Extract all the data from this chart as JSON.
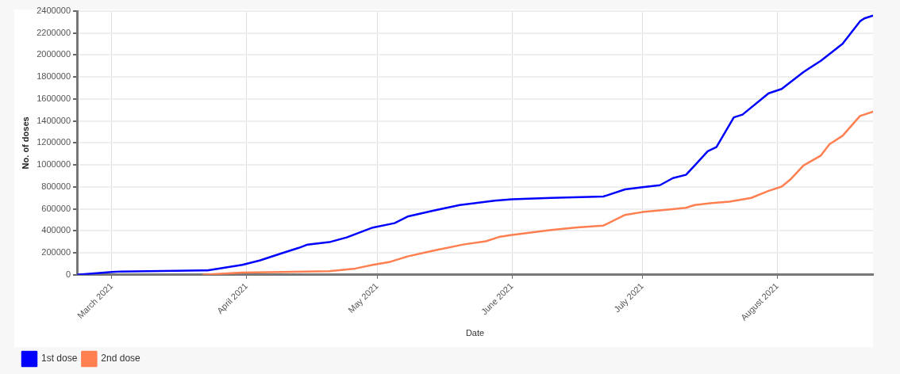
{
  "chart_data": {
    "type": "line",
    "xlabel": "Date",
    "ylabel": "No. of doses",
    "xlim": [
      "2021-02-21",
      "2021-08-23"
    ],
    "xticks": [
      {
        "value": "2021-03-01",
        "label": "March 2021"
      },
      {
        "value": "2021-04-01",
        "label": "April 2021"
      },
      {
        "value": "2021-05-01",
        "label": "May 2021"
      },
      {
        "value": "2021-06-01",
        "label": "June 2021"
      },
      {
        "value": "2021-07-01",
        "label": "July 2021"
      },
      {
        "value": "2021-08-01",
        "label": "August 2021"
      }
    ],
    "ylim": [
      0,
      2400000
    ],
    "yticks": [
      0,
      200000,
      400000,
      600000,
      800000,
      1000000,
      1200000,
      1400000,
      1600000,
      1800000,
      2000000,
      2200000,
      2400000
    ],
    "grid": true,
    "legend": "bottom left",
    "marker": "none",
    "line_style": "solid",
    "series": [
      {
        "name": "1st dose",
        "color": "#0000ff",
        "x": [
          "2021-02-21",
          "2021-03-01",
          "2021-03-03",
          "2021-03-23",
          "2021-03-31",
          "2021-04-04",
          "2021-04-09",
          "2021-04-13",
          "2021-04-15",
          "2021-04-20",
          "2021-04-24",
          "2021-04-30",
          "2021-05-05",
          "2021-05-08",
          "2021-05-14",
          "2021-05-20",
          "2021-05-28",
          "2021-06-01",
          "2021-06-10",
          "2021-06-22",
          "2021-06-27",
          "2021-07-01",
          "2021-07-05",
          "2021-07-08",
          "2021-07-11",
          "2021-07-13",
          "2021-07-16",
          "2021-07-18",
          "2021-07-22",
          "2021-07-24",
          "2021-07-30",
          "2021-08-02",
          "2021-08-07",
          "2021-08-11",
          "2021-08-16",
          "2021-08-20",
          "2021-08-21",
          "2021-08-23"
        ],
        "values": [
          0,
          25000,
          30000,
          40000,
          90000,
          130000,
          195000,
          245000,
          275000,
          297000,
          340000,
          430000,
          470000,
          530000,
          585000,
          635000,
          674000,
          687000,
          700000,
          712000,
          777000,
          797000,
          815000,
          880000,
          910000,
          995000,
          1124000,
          1163000,
          1433000,
          1458000,
          1652000,
          1691000,
          1845000,
          1948000,
          2102000,
          2307000,
          2333000,
          2359000
        ]
      },
      {
        "name": "2nd dose",
        "color": "#ff7f50",
        "x": [
          "2021-03-22",
          "2021-03-31",
          "2021-04-09",
          "2021-04-20",
          "2021-04-26",
          "2021-04-30",
          "2021-05-04",
          "2021-05-08",
          "2021-05-14",
          "2021-05-21",
          "2021-05-26",
          "2021-05-29",
          "2021-06-01",
          "2021-06-10",
          "2021-06-16",
          "2021-06-22",
          "2021-06-27",
          "2021-07-01",
          "2021-07-06",
          "2021-07-11",
          "2021-07-13",
          "2021-07-17",
          "2021-07-21",
          "2021-07-26",
          "2021-07-30",
          "2021-08-02",
          "2021-08-04",
          "2021-08-07",
          "2021-08-11",
          "2021-08-13",
          "2021-08-16",
          "2021-08-20",
          "2021-08-23"
        ],
        "values": [
          0,
          20000,
          25000,
          33000,
          57000,
          90000,
          118000,
          167000,
          220000,
          277000,
          305000,
          344000,
          362000,
          407000,
          432000,
          448000,
          545000,
          571000,
          589000,
          610000,
          635000,
          653000,
          666000,
          700000,
          764000,
          803000,
          867000,
          995000,
          1085000,
          1188000,
          1265000,
          1445000,
          1485000
        ]
      }
    ]
  }
}
